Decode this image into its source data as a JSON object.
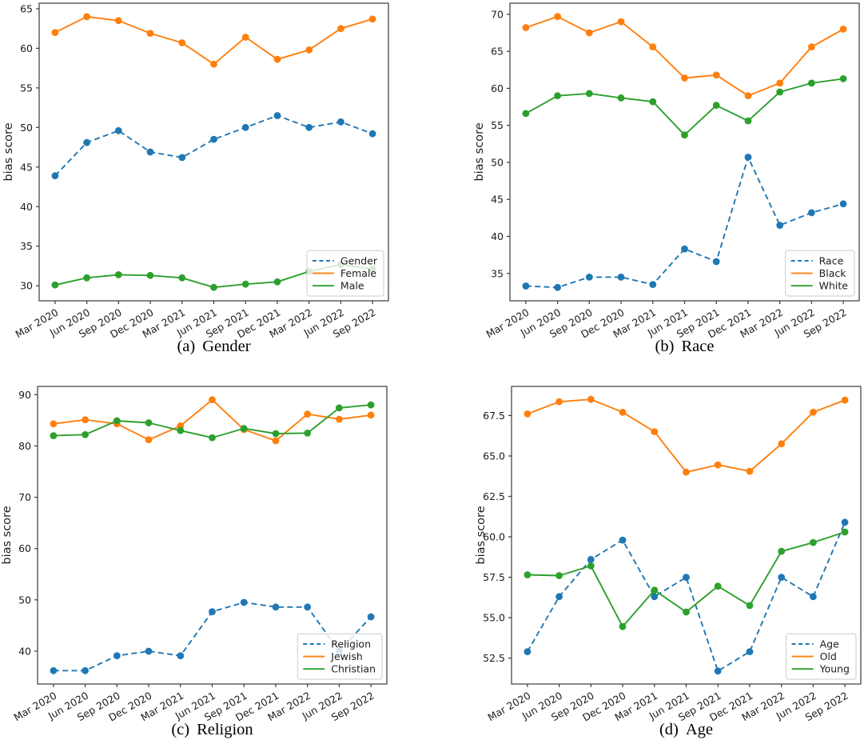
{
  "page": {
    "background": "#ffffff"
  },
  "chart_data": [
    {
      "title": "Gender",
      "caption": {
        "index": "(a)",
        "text": "Gender"
      },
      "type": "line",
      "xlabel": "",
      "ylabel": "bias score",
      "categories": [
        "Mar 2020",
        "Jun 2020",
        "Sep 2020",
        "Dec 2020",
        "Mar 2021",
        "Jun 2021",
        "Sep 2021",
        "Dec 2021",
        "Mar 2022",
        "Jun 2022",
        "Sep 2022"
      ],
      "ylim": [
        28.1,
        65.7
      ],
      "yticks": [
        30,
        35,
        40,
        45,
        50,
        55,
        60,
        65
      ],
      "ytick_labels": [
        "30",
        "35",
        "40",
        "45",
        "50",
        "55",
        "60",
        "65"
      ],
      "grid": false,
      "legend_location": "lower right",
      "series": [
        {
          "name": "Gender",
          "color": "#1f77b4",
          "line_style": "dashed",
          "marker": "circle",
          "values": [
            43.9,
            48.1,
            49.6,
            46.9,
            46.2,
            48.5,
            50.0,
            51.5,
            50.0,
            50.7,
            49.2
          ]
        },
        {
          "name": "Female",
          "color": "#ff7f0e",
          "line_style": "solid",
          "marker": "circle",
          "values": [
            62.0,
            64.0,
            63.5,
            61.9,
            60.7,
            58.0,
            61.4,
            58.6,
            59.8,
            62.5,
            63.7
          ]
        },
        {
          "name": "Male",
          "color": "#2ca02c",
          "line_style": "solid",
          "marker": "circle",
          "values": [
            30.1,
            31.0,
            31.4,
            31.3,
            31.0,
            29.8,
            30.2,
            30.5,
            31.8,
            32.7,
            32.1
          ]
        }
      ]
    },
    {
      "title": "Race",
      "caption": {
        "index": "(b)",
        "text": "Race"
      },
      "type": "line",
      "xlabel": "",
      "ylabel": "bias score",
      "categories": [
        "Mar 2020",
        "Jun 2020",
        "Sep 2020",
        "Dec 2020",
        "Mar 2021",
        "Jun 2021",
        "Sep 2021",
        "Dec 2021",
        "Mar 2022",
        "Jun 2022",
        "Sep 2022"
      ],
      "ylim": [
        31.3,
        71.5
      ],
      "yticks": [
        35,
        40,
        45,
        50,
        55,
        60,
        65,
        70
      ],
      "ytick_labels": [
        "35",
        "40",
        "45",
        "50",
        "55",
        "60",
        "65",
        "70"
      ],
      "grid": false,
      "legend_location": "lower right",
      "series": [
        {
          "name": "Race",
          "color": "#1f77b4",
          "line_style": "dashed",
          "marker": "circle",
          "values": [
            33.3,
            33.1,
            34.5,
            34.5,
            33.5,
            38.3,
            36.6,
            50.7,
            41.5,
            43.2,
            44.4
          ]
        },
        {
          "name": "Black",
          "color": "#ff7f0e",
          "line_style": "solid",
          "marker": "circle",
          "values": [
            68.2,
            69.7,
            67.5,
            69.0,
            65.6,
            61.4,
            61.8,
            59.0,
            60.7,
            65.6,
            68.0
          ]
        },
        {
          "name": "White",
          "color": "#2ca02c",
          "line_style": "solid",
          "marker": "circle",
          "values": [
            56.6,
            59.0,
            59.3,
            58.7,
            58.2,
            53.7,
            57.7,
            55.6,
            59.5,
            60.7,
            61.3
          ]
        }
      ]
    },
    {
      "title": "Religion",
      "caption": {
        "index": "(c)",
        "text": "Religion"
      },
      "type": "line",
      "xlabel": "",
      "ylabel": "bias score",
      "categories": [
        "Mar 2020",
        "Jun 2020",
        "Sep 2020",
        "Dec 2020",
        "Mar 2021",
        "Jun 2021",
        "Sep 2021",
        "Dec 2021",
        "Mar 2022",
        "Jun 2022",
        "Sep 2022"
      ],
      "ylim": [
        33.6,
        91.6
      ],
      "yticks": [
        40,
        50,
        60,
        70,
        80,
        90
      ],
      "ytick_labels": [
        "40",
        "50",
        "60",
        "70",
        "80",
        "90"
      ],
      "grid": false,
      "legend_location": "lower right",
      "series": [
        {
          "name": "Religion",
          "color": "#1f77b4",
          "line_style": "dashed",
          "marker": "circle",
          "values": [
            36.2,
            36.2,
            39.1,
            40.0,
            39.1,
            47.7,
            49.5,
            48.6,
            48.6,
            40.0,
            46.7
          ]
        },
        {
          "name": "Jewish",
          "color": "#ff7f0e",
          "line_style": "solid",
          "marker": "circle",
          "values": [
            84.3,
            85.1,
            84.3,
            81.2,
            83.9,
            89.0,
            83.2,
            81.0,
            86.2,
            85.2,
            86.0
          ]
        },
        {
          "name": "Christian",
          "color": "#2ca02c",
          "line_style": "solid",
          "marker": "circle",
          "values": [
            82.0,
            82.2,
            84.9,
            84.5,
            83.0,
            81.6,
            83.4,
            82.4,
            82.5,
            87.4,
            88.0
          ]
        }
      ]
    },
    {
      "title": "Age",
      "caption": {
        "index": "(d)",
        "text": "Age"
      },
      "type": "line",
      "xlabel": "",
      "ylabel": "bias score",
      "categories": [
        "Mar 2020",
        "Jun 2020",
        "Sep 2020",
        "Dec 2020",
        "Mar 2021",
        "Jun 2021",
        "Sep 2021",
        "Dec 2021",
        "Mar 2022",
        "Jun 2022",
        "Sep 2022"
      ],
      "ylim": [
        50.9,
        69.3
      ],
      "yticks": [
        52.5,
        55.0,
        57.5,
        60.0,
        62.5,
        65.0,
        67.5
      ],
      "ytick_labels": [
        "52.5",
        "55.0",
        "57.5",
        "60.0",
        "62.5",
        "65.0",
        "67.5"
      ],
      "grid": false,
      "legend_location": "lower right",
      "series": [
        {
          "name": "Age",
          "color": "#1f77b4",
          "line_style": "dashed",
          "marker": "circle",
          "values": [
            52.9,
            56.3,
            58.6,
            59.8,
            56.3,
            57.5,
            51.7,
            52.9,
            57.5,
            56.3,
            60.9
          ]
        },
        {
          "name": "Old",
          "color": "#ff7f0e",
          "line_style": "solid",
          "marker": "circle",
          "values": [
            67.6,
            68.35,
            68.5,
            67.7,
            66.5,
            64.0,
            64.45,
            64.05,
            65.75,
            67.7,
            68.45
          ]
        },
        {
          "name": "Young",
          "color": "#2ca02c",
          "line_style": "solid",
          "marker": "circle",
          "values": [
            57.65,
            57.6,
            58.2,
            54.45,
            56.7,
            55.35,
            56.95,
            55.75,
            59.1,
            59.65,
            60.3
          ]
        }
      ]
    }
  ]
}
